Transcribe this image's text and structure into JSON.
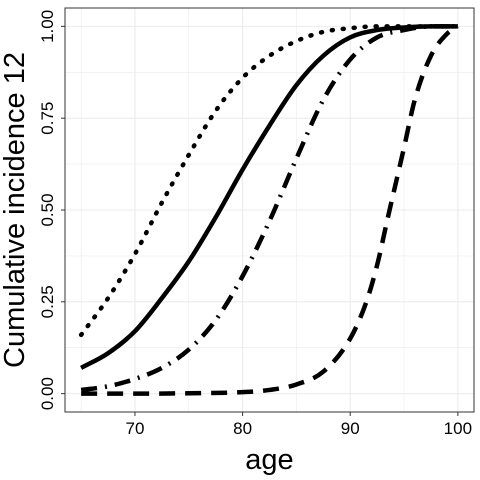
{
  "chart_data": {
    "type": "line",
    "title": "",
    "xlabel": "age",
    "ylabel": "Cumulative incidence 12",
    "xlim": [
      63.5,
      101.5
    ],
    "ylim": [
      -0.05,
      1.05
    ],
    "x_ticks": [
      {
        "value": 70,
        "label": "70"
      },
      {
        "value": 80,
        "label": "80"
      },
      {
        "value": 90,
        "label": "90"
      },
      {
        "value": 100,
        "label": "100"
      }
    ],
    "y_ticks": [
      {
        "value": 0,
        "label": "0.00"
      },
      {
        "value": 0.25,
        "label": "0.25"
      },
      {
        "value": 0.5,
        "label": "0.50"
      },
      {
        "value": 0.75,
        "label": "0.75"
      },
      {
        "value": 1,
        "label": "1.00"
      }
    ],
    "grid": true,
    "legend": "none",
    "colors": {
      "line": "#000000",
      "grid": "#ebebeb",
      "panel_border": "#333333",
      "background": "#ffffff"
    },
    "series": [
      {
        "linestyle": "dotted",
        "x": [
          65,
          67.5,
          70,
          72.5,
          75,
          77.5,
          80,
          82.5,
          85,
          87.5,
          90,
          92.5,
          95,
          97.5,
          100
        ],
        "y": [
          0.16,
          0.26,
          0.38,
          0.52,
          0.65,
          0.77,
          0.86,
          0.92,
          0.96,
          0.985,
          0.995,
          1,
          1,
          1,
          1
        ]
      },
      {
        "linestyle": "solid",
        "x": [
          65,
          67.5,
          70,
          72.5,
          75,
          77.5,
          80,
          82.5,
          85,
          87.5,
          90,
          92.5,
          95,
          97.5,
          100
        ],
        "y": [
          0.07,
          0.11,
          0.17,
          0.26,
          0.36,
          0.48,
          0.61,
          0.73,
          0.84,
          0.92,
          0.97,
          0.99,
          0.997,
          1,
          1
        ]
      },
      {
        "linestyle": "dashdot",
        "x": [
          65,
          67.5,
          70,
          72.5,
          75,
          77.5,
          80,
          82.5,
          85,
          87.5,
          90,
          92.5,
          95,
          97.5,
          100
        ],
        "y": [
          0.01,
          0.02,
          0.04,
          0.07,
          0.12,
          0.2,
          0.32,
          0.47,
          0.64,
          0.8,
          0.91,
          0.97,
          0.99,
          1,
          1
        ]
      },
      {
        "linestyle": "dashed",
        "x": [
          65,
          70,
          75,
          80,
          82.5,
          85,
          87.5,
          90,
          91.5,
          92.5,
          93.5,
          95,
          96,
          97.5,
          99,
          100
        ],
        "y": [
          0,
          0,
          0.001,
          0.004,
          0.01,
          0.025,
          0.06,
          0.15,
          0.25,
          0.35,
          0.48,
          0.67,
          0.8,
          0.92,
          0.98,
          1
        ]
      }
    ]
  }
}
